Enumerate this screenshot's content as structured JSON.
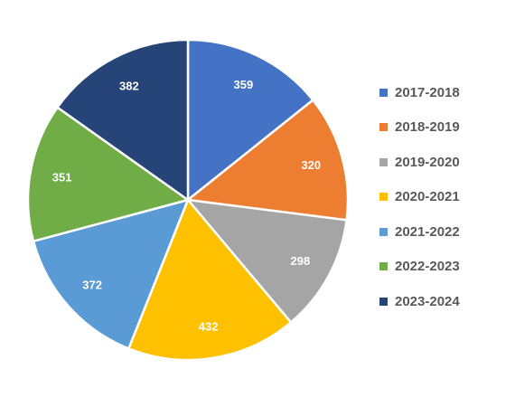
{
  "chart_data": {
    "type": "pie",
    "categories": [
      "2017-2018",
      "2018-2019",
      "2019-2020",
      "2020-2021",
      "2021-2022",
      "2022-2023",
      "2023-2024"
    ],
    "values": [
      359,
      320,
      298,
      432,
      372,
      351,
      382
    ],
    "data_labels": [
      "359",
      "320",
      "298",
      "432",
      "372",
      "351",
      "382"
    ],
    "colors": [
      "#4472C4",
      "#ED7D31",
      "#A5A5A5",
      "#FFC000",
      "#5B9BD5",
      "#70AD47",
      "#264478"
    ],
    "legend_position": "right",
    "start_direction": "top",
    "direction": "clockwise"
  },
  "legend": {
    "items": [
      {
        "label": "2017-2018",
        "color": "#4472C4"
      },
      {
        "label": "2018-2019",
        "color": "#ED7D31"
      },
      {
        "label": "2019-2020",
        "color": "#A5A5A5"
      },
      {
        "label": "2020-2021",
        "color": "#FFC000"
      },
      {
        "label": "2021-2022",
        "color": "#5B9BD5"
      },
      {
        "label": "2022-2023",
        "color": "#70AD47"
      },
      {
        "label": "2023-2024",
        "color": "#264478"
      }
    ]
  }
}
